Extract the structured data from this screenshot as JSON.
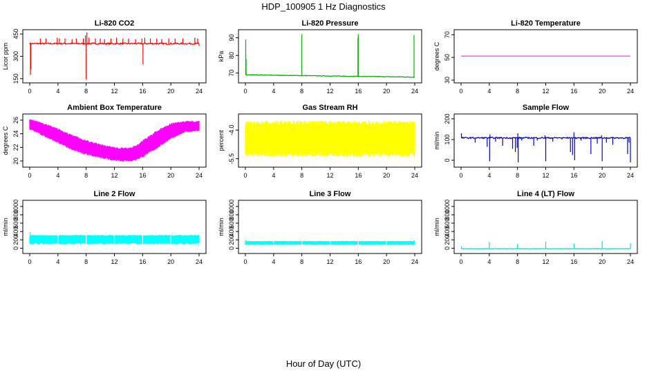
{
  "figure": {
    "title": "HDP_100905  1 Hz Diagnostics",
    "xlabel": "Hour of Day (UTC)"
  },
  "chart_data": [
    {
      "type": "line",
      "title": "Li-820 CO2",
      "ylabel": "Licor ppm",
      "color": "#ff0000",
      "xlim": [
        0,
        24
      ],
      "ylim": [
        140,
        460
      ],
      "xticks": [
        0,
        4,
        8,
        12,
        16,
        20,
        24
      ],
      "yticks": [
        150,
        300,
        450
      ],
      "ytick_labels": [
        "150",
        "300",
        "450"
      ],
      "series": [
        {
          "kind": "spiky",
          "base": 385,
          "noise": 5,
          "spikes": [
            [
              0.1,
              175
            ],
            [
              0.15,
              215
            ],
            [
              1.5,
              420
            ],
            [
              2.3,
              420
            ],
            [
              3.9,
              425
            ],
            [
              4.2,
              420
            ],
            [
              5.0,
              420
            ],
            [
              6.0,
              415
            ],
            [
              6.6,
              420
            ],
            [
              7.6,
              420
            ],
            [
              7.9,
              440
            ],
            [
              8.0,
              145
            ],
            [
              8.1,
              460
            ],
            [
              8.4,
              425
            ],
            [
              9.3,
              420
            ],
            [
              10.0,
              420
            ],
            [
              10.6,
              415
            ],
            [
              11.5,
              420
            ],
            [
              12.3,
              425
            ],
            [
              13.2,
              420
            ],
            [
              14.0,
              420
            ],
            [
              15.0,
              415
            ],
            [
              15.9,
              420
            ],
            [
              16.05,
              245
            ],
            [
              16.3,
              425
            ],
            [
              17.1,
              420
            ],
            [
              18.0,
              420
            ],
            [
              18.7,
              415
            ],
            [
              19.7,
              420
            ],
            [
              20.6,
              420
            ],
            [
              21.7,
              420
            ],
            [
              23.4,
              425
            ],
            [
              23.8,
              420
            ],
            [
              24.0,
              370
            ]
          ]
        }
      ]
    },
    {
      "type": "line",
      "title": "Li-820 Pressure",
      "ylabel": "kPa",
      "color": "#00b000",
      "xlim": [
        0,
        24
      ],
      "ylim": [
        66,
        93
      ],
      "xticks": [
        0,
        4,
        8,
        12,
        16,
        20,
        24
      ],
      "yticks": [
        70,
        80,
        90
      ],
      "ytick_labels": [
        "70",
        "80",
        "90"
      ],
      "series": [
        {
          "kind": "drift",
          "start": 69,
          "end": 67.7,
          "noise": 0.15,
          "spikes": [
            [
              0.05,
              89
            ],
            [
              0.1,
              78
            ],
            [
              8.0,
              92
            ],
            [
              16.0,
              92
            ],
            [
              15.95,
              90
            ],
            [
              23.9,
              91.5
            ]
          ]
        }
      ]
    },
    {
      "type": "line",
      "title": "Li-820 Temperature",
      "ylabel": "degrees C",
      "color": "#ff00ff",
      "xlim": [
        0,
        24
      ],
      "ylim": [
        30,
        72
      ],
      "xticks": [
        0,
        4,
        8,
        12,
        16,
        20,
        24
      ],
      "yticks": [
        30,
        50,
        70
      ],
      "ytick_labels": [
        "30",
        "50",
        "70"
      ],
      "series": [
        {
          "kind": "constant",
          "value": 51.2
        }
      ]
    },
    {
      "type": "area",
      "title": "Ambient Box Temperature",
      "ylabel": "degrees C",
      "color": "#ff00ff",
      "xlim": [
        0,
        24
      ],
      "ylim": [
        19.5,
        26.5
      ],
      "xticks": [
        0,
        4,
        8,
        12,
        16,
        20,
        24
      ],
      "yticks": [
        20,
        22,
        24,
        26
      ],
      "ytick_labels": [
        "20",
        "22",
        "24",
        "26"
      ],
      "series": [
        {
          "kind": "band",
          "lower": [
            [
              0,
              24.6
            ],
            [
              2,
              23.6
            ],
            [
              4,
              22.6
            ],
            [
              6,
              21.6
            ],
            [
              8,
              20.9
            ],
            [
              10,
              20.4
            ],
            [
              12,
              20.0
            ],
            [
              13,
              19.9
            ],
            [
              14,
              19.9
            ],
            [
              15,
              20.0
            ],
            [
              16,
              20.5
            ],
            [
              18,
              21.8
            ],
            [
              20,
              23.2
            ],
            [
              22,
              24.2
            ],
            [
              24,
              24.4
            ]
          ],
          "upper": [
            [
              0,
              26.2
            ],
            [
              2,
              25.6
            ],
            [
              4,
              24.8
            ],
            [
              6,
              23.9
            ],
            [
              8,
              23.1
            ],
            [
              10,
              22.5
            ],
            [
              12,
              22.1
            ],
            [
              13,
              22.0
            ],
            [
              14,
              22.0
            ],
            [
              15,
              22.3
            ],
            [
              16,
              23.1
            ],
            [
              18,
              24.5
            ],
            [
              20,
              25.6
            ],
            [
              22,
              25.9
            ],
            [
              24,
              25.9
            ]
          ]
        }
      ]
    },
    {
      "type": "area",
      "title": "Gas Stream RH",
      "ylabel": "percent",
      "color": "#ffff00",
      "xlim": [
        0,
        24
      ],
      "ylim": [
        -5.8,
        -3.3
      ],
      "xticks": [
        0,
        4,
        8,
        12,
        16,
        20,
        24
      ],
      "yticks": [
        -5.5,
        -4.0
      ],
      "ytick_labels": [
        "-5.5",
        "-4.0"
      ],
      "series": [
        {
          "kind": "band",
          "lower": [
            [
              0,
              -5.4
            ],
            [
              24,
              -5.4
            ]
          ],
          "upper": [
            [
              0,
              -3.5
            ],
            [
              24,
              -3.5
            ]
          ]
        }
      ]
    },
    {
      "type": "line",
      "title": "Sample Flow",
      "ylabel": "ml/min",
      "color": "#0000d0",
      "xlim": [
        0,
        24
      ],
      "ylim": [
        -20,
        210
      ],
      "xticks": [
        0,
        4,
        8,
        12,
        16,
        20,
        24
      ],
      "yticks": [
        0,
        100,
        200
      ],
      "ytick_labels": [
        "0",
        "100",
        "200"
      ],
      "series": [
        {
          "kind": "spiky",
          "base": 108,
          "noise": 3,
          "spikes": [
            [
              0.05,
              130
            ],
            [
              2.0,
              85
            ],
            [
              3.7,
              65
            ],
            [
              4.05,
              -5
            ],
            [
              4.1,
              125
            ],
            [
              4.9,
              90
            ],
            [
              5.9,
              70
            ],
            [
              7.3,
              55
            ],
            [
              7.7,
              40
            ],
            [
              7.95,
              60
            ],
            [
              8.05,
              130
            ],
            [
              8.1,
              -10
            ],
            [
              8.6,
              95
            ],
            [
              10.3,
              70
            ],
            [
              10.8,
              95
            ],
            [
              11.9,
              120
            ],
            [
              12.0,
              -5
            ],
            [
              13.0,
              90
            ],
            [
              14.3,
              100
            ],
            [
              15.5,
              40
            ],
            [
              15.8,
              25
            ],
            [
              16.0,
              135
            ],
            [
              16.1,
              0
            ],
            [
              17.0,
              95
            ],
            [
              18.4,
              30
            ],
            [
              19.3,
              80
            ],
            [
              19.9,
              120
            ],
            [
              20.0,
              -5
            ],
            [
              20.6,
              85
            ],
            [
              21.5,
              75
            ],
            [
              23.6,
              30
            ],
            [
              23.8,
              85
            ],
            [
              24.0,
              -10
            ]
          ]
        }
      ]
    },
    {
      "type": "area",
      "title": "Line 2 Flow",
      "ylabel": "ml/min",
      "color": "#00ffff",
      "xlim": [
        0,
        24
      ],
      "ylim": [
        -60,
        1080
      ],
      "xticks": [
        0,
        4,
        8,
        12,
        16,
        20,
        24
      ],
      "yticks": [
        0,
        200,
        400,
        600,
        800,
        1000
      ],
      "ytick_labels": [
        "0",
        "200",
        "400",
        "600",
        "800",
        "1000"
      ],
      "series": [
        {
          "kind": "band",
          "lower": [
            [
              0,
              100
            ],
            [
              24,
              100
            ]
          ],
          "upper": [
            [
              0,
              320
            ],
            [
              24,
              320
            ]
          ],
          "gaps": [
            4.0,
            8.0,
            12.0,
            16.0,
            20.0
          ],
          "edge_spikes": [
            [
              0.05,
              390
            ],
            [
              23.9,
              60
            ]
          ]
        }
      ]
    },
    {
      "type": "area",
      "title": "Line 3 Flow",
      "ylabel": "ml/min",
      "color": "#00ffff",
      "xlim": [
        0,
        24
      ],
      "ylim": [
        -60,
        1080
      ],
      "xticks": [
        0,
        4,
        8,
        12,
        16,
        20,
        24
      ],
      "yticks": [
        0,
        200,
        400,
        600,
        800,
        1000
      ],
      "ytick_labels": [
        "0",
        "200",
        "400",
        "600",
        "800",
        "1000"
      ],
      "series": [
        {
          "kind": "band",
          "lower": [
            [
              0,
              80
            ],
            [
              24,
              80
            ]
          ],
          "upper": [
            [
              0,
              175
            ],
            [
              24,
              175
            ]
          ],
          "gaps": [
            4.0,
            8.0,
            12.0,
            16.0,
            20.0
          ],
          "edge_spikes": [
            [
              0.05,
              200
            ],
            [
              23.9,
              200
            ]
          ]
        }
      ]
    },
    {
      "type": "line",
      "title": "Line 4 (LT) Flow",
      "ylabel": "ml/min",
      "color": "#00e0e0",
      "xlim": [
        0,
        24
      ],
      "ylim": [
        -60,
        1080
      ],
      "xticks": [
        0,
        4,
        8,
        12,
        16,
        20,
        24
      ],
      "yticks": [
        0,
        200,
        400,
        600,
        800,
        1000
      ],
      "ytick_labels": [
        "0",
        "200",
        "400",
        "600",
        "800",
        "1000"
      ],
      "series": [
        {
          "kind": "spiky",
          "base": -10,
          "noise": 4,
          "spikes": [
            [
              0.05,
              50
            ],
            [
              4.0,
              150
            ],
            [
              8.0,
              100
            ],
            [
              12.0,
              160
            ],
            [
              16.0,
              110
            ],
            [
              20.0,
              170
            ],
            [
              24.0,
              120
            ]
          ]
        }
      ]
    }
  ]
}
